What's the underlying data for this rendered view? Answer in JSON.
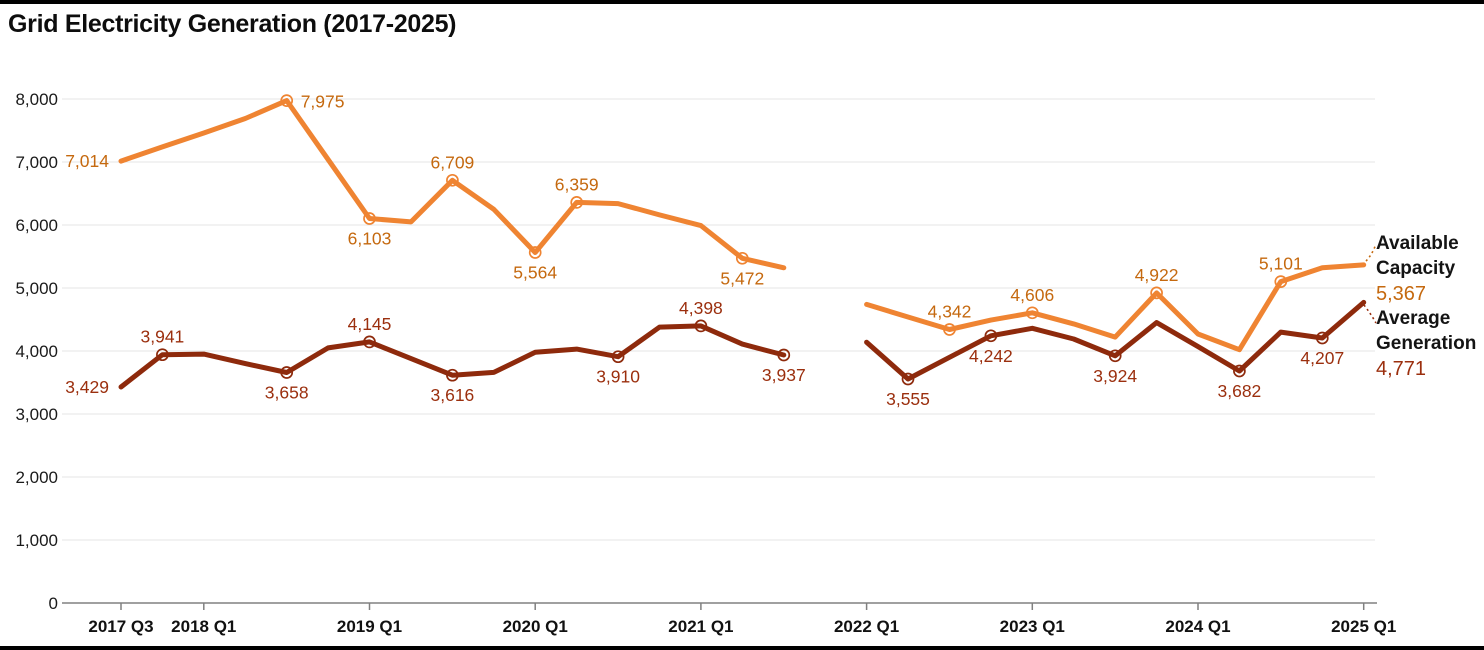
{
  "title": "Grid Electricity Generation (2017-2025)",
  "colors": {
    "capacity_line": "#ef8432",
    "capacity_label": "#c5690f",
    "generation_line": "#8e2a0c",
    "generation_label": "#9b2f0e",
    "axis": "#808080",
    "grid": "#e4e4e4",
    "tick_text": "#1a1a1a"
  },
  "legend": {
    "series1": {
      "name": "Available Capacity",
      "value": "5,367"
    },
    "series2": {
      "name": "Average Generation",
      "value": "4,771"
    }
  },
  "chart_data": {
    "type": "line",
    "title": "Grid Electricity Generation (2017-2025)",
    "xlabel": "",
    "ylabel": "",
    "ylim": [
      0,
      8000
    ],
    "y_ticks": [
      0,
      1000,
      2000,
      3000,
      4000,
      5000,
      6000,
      7000,
      8000
    ],
    "x_ticks": [
      "2017 Q3",
      "2018 Q1",
      "2019 Q1",
      "2020 Q1",
      "2021 Q1",
      "2022 Q1",
      "2023 Q1",
      "2024 Q1",
      "2025 Q1"
    ],
    "x_tick_indices": [
      0,
      2,
      6,
      10,
      14,
      18,
      22,
      26,
      30
    ],
    "grid": "horizontal",
    "legend_position": "right-edge",
    "gap_quarter": "2021 Q4",
    "series": [
      {
        "name": "Available Capacity",
        "color": "#ef8432",
        "label_color": "#c5690f",
        "segments": [
          [
            {
              "q": "2017 Q3",
              "i": 0,
              "v": 7014,
              "label": "left",
              "marker": false
            },
            {
              "q": "2017 Q4",
              "i": 1,
              "v": 7240,
              "est": true
            },
            {
              "q": "2018 Q1",
              "i": 2,
              "v": 7460,
              "est": true
            },
            {
              "q": "2018 Q2",
              "i": 3,
              "v": 7690,
              "est": true
            },
            {
              "q": "2018 Q3",
              "i": 4,
              "v": 7975,
              "label": "right",
              "marker": true
            },
            {
              "q": "2018 Q4",
              "i": 5,
              "v": 7040,
              "est": true
            },
            {
              "q": "2019 Q1",
              "i": 6,
              "v": 6103,
              "label": "below",
              "marker": true
            },
            {
              "q": "2019 Q2",
              "i": 7,
              "v": 6050,
              "est": true
            },
            {
              "q": "2019 Q3",
              "i": 8,
              "v": 6709,
              "label": "above",
              "marker": true
            },
            {
              "q": "2019 Q4",
              "i": 9,
              "v": 6250,
              "est": true
            },
            {
              "q": "2020 Q1",
              "i": 10,
              "v": 5564,
              "label": "below",
              "marker": true
            },
            {
              "q": "2020 Q2",
              "i": 11,
              "v": 6359,
              "label": "above",
              "marker": true
            },
            {
              "q": "2020 Q3",
              "i": 12,
              "v": 6340,
              "est": true
            },
            {
              "q": "2020 Q4",
              "i": 13,
              "v": 6160,
              "est": true
            },
            {
              "q": "2021 Q1",
              "i": 14,
              "v": 5990,
              "est": true
            },
            {
              "q": "2021 Q2",
              "i": 15,
              "v": 5472,
              "label": "below",
              "marker": true
            },
            {
              "q": "2021 Q3",
              "i": 16,
              "v": 5320,
              "est": true
            }
          ],
          [
            {
              "q": "2022 Q1",
              "i": 18,
              "v": 4740,
              "est": true
            },
            {
              "q": "2022 Q2",
              "i": 19,
              "v": 4540,
              "est": true
            },
            {
              "q": "2022 Q3",
              "i": 20,
              "v": 4342,
              "label": "above",
              "marker": true
            },
            {
              "q": "2022 Q4",
              "i": 21,
              "v": 4490,
              "est": true
            },
            {
              "q": "2023 Q1",
              "i": 22,
              "v": 4606,
              "label": "above",
              "marker": true
            },
            {
              "q": "2023 Q2",
              "i": 23,
              "v": 4430,
              "est": true
            },
            {
              "q": "2023 Q3",
              "i": 24,
              "v": 4220,
              "est": true
            },
            {
              "q": "2023 Q4",
              "i": 25,
              "v": 4922,
              "label": "above",
              "marker": true
            },
            {
              "q": "2024 Q1",
              "i": 26,
              "v": 4270,
              "est": true
            },
            {
              "q": "2024 Q2",
              "i": 27,
              "v": 4020,
              "est": true
            },
            {
              "q": "2024 Q3",
              "i": 28,
              "v": 5101,
              "label": "above",
              "marker": true
            },
            {
              "q": "2024 Q4",
              "i": 29,
              "v": 5320,
              "est": true
            },
            {
              "q": "2025 Q1",
              "i": 30,
              "v": 5367,
              "label": "legend",
              "marker": false
            }
          ]
        ]
      },
      {
        "name": "Average Generation",
        "color": "#8e2a0c",
        "label_color": "#9b2f0e",
        "segments": [
          [
            {
              "q": "2017 Q3",
              "i": 0,
              "v": 3429,
              "label": "left",
              "marker": false
            },
            {
              "q": "2017 Q4",
              "i": 1,
              "v": 3941,
              "label": "above",
              "marker": true
            },
            {
              "q": "2018 Q1",
              "i": 2,
              "v": 3950,
              "est": true
            },
            {
              "q": "2018 Q2",
              "i": 3,
              "v": 3800,
              "est": true
            },
            {
              "q": "2018 Q3",
              "i": 4,
              "v": 3658,
              "label": "below",
              "marker": true
            },
            {
              "q": "2018 Q4",
              "i": 5,
              "v": 4050,
              "est": true
            },
            {
              "q": "2019 Q1",
              "i": 6,
              "v": 4145,
              "label": "above",
              "marker": true
            },
            {
              "q": "2019 Q2",
              "i": 7,
              "v": 3880,
              "est": true
            },
            {
              "q": "2019 Q3",
              "i": 8,
              "v": 3616,
              "label": "below",
              "marker": true
            },
            {
              "q": "2019 Q4",
              "i": 9,
              "v": 3660,
              "est": true
            },
            {
              "q": "2020 Q1",
              "i": 10,
              "v": 3980,
              "est": true
            },
            {
              "q": "2020 Q2",
              "i": 11,
              "v": 4030,
              "est": true
            },
            {
              "q": "2020 Q3",
              "i": 12,
              "v": 3910,
              "label": "below",
              "marker": true
            },
            {
              "q": "2020 Q4",
              "i": 13,
              "v": 4380,
              "est": true
            },
            {
              "q": "2021 Q1",
              "i": 14,
              "v": 4398,
              "label": "above",
              "marker": true
            },
            {
              "q": "2021 Q2",
              "i": 15,
              "v": 4110,
              "est": true
            },
            {
              "q": "2021 Q3",
              "i": 16,
              "v": 3937,
              "label": "below",
              "marker": true
            }
          ],
          [
            {
              "q": "2022 Q1",
              "i": 18,
              "v": 4140,
              "est": true
            },
            {
              "q": "2022 Q2",
              "i": 19,
              "v": 3555,
              "label": "below",
              "marker": true
            },
            {
              "q": "2022 Q3",
              "i": 20,
              "v": 3900,
              "est": true
            },
            {
              "q": "2022 Q4",
              "i": 21,
              "v": 4242,
              "label": "below",
              "marker": true
            },
            {
              "q": "2023 Q1",
              "i": 22,
              "v": 4360,
              "est": true
            },
            {
              "q": "2023 Q2",
              "i": 23,
              "v": 4190,
              "est": true
            },
            {
              "q": "2023 Q3",
              "i": 24,
              "v": 3924,
              "label": "below",
              "marker": true
            },
            {
              "q": "2023 Q4",
              "i": 25,
              "v": 4450,
              "est": true
            },
            {
              "q": "2024 Q1",
              "i": 26,
              "v": 4070,
              "est": true
            },
            {
              "q": "2024 Q2",
              "i": 27,
              "v": 3682,
              "label": "below",
              "marker": true
            },
            {
              "q": "2024 Q3",
              "i": 28,
              "v": 4300,
              "est": true
            },
            {
              "q": "2024 Q4",
              "i": 29,
              "v": 4207,
              "label": "below",
              "marker": true
            },
            {
              "q": "2025 Q1",
              "i": 30,
              "v": 4771,
              "label": "legend",
              "marker": false
            }
          ]
        ]
      }
    ]
  }
}
